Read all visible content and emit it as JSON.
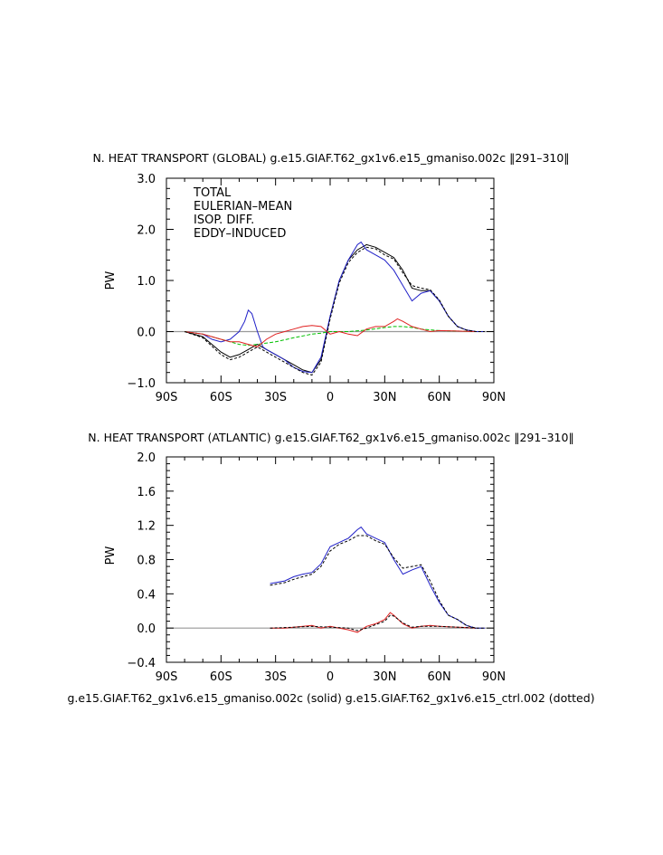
{
  "chart_data": [
    {
      "type": "line",
      "title": "N. HEAT TRANSPORT (GLOBAL) g.e15.GIAF.T62_gx1v6.e15_gmaniso.002c ‖291–310‖",
      "ylabel": "PW",
      "xlim": [
        -90,
        90
      ],
      "ylim": [
        -1.0,
        3.0
      ],
      "xticks": [
        -90,
        -60,
        -30,
        0,
        30,
        60,
        90
      ],
      "xtick_labels": [
        "90S",
        "60S",
        "30S",
        "0",
        "30N",
        "60N",
        "90N"
      ],
      "yticks": [
        -1.0,
        0.0,
        1.0,
        2.0,
        3.0
      ],
      "ytick_labels": [
        "−1.0",
        "0.0",
        "1.0",
        "2.0",
        "3.0"
      ],
      "legend_position": "top-left",
      "zero_line": true,
      "series": [
        {
          "name": "TOTAL",
          "color": "#000000",
          "style": "solid",
          "x": [
            -80,
            -70,
            -60,
            -55,
            -50,
            -45,
            -40,
            -35,
            -30,
            -25,
            -20,
            -15,
            -10,
            -5,
            0,
            5,
            10,
            15,
            20,
            25,
            30,
            35,
            40,
            45,
            50,
            55,
            60,
            65,
            70,
            75,
            80,
            85
          ],
          "y": [
            0.0,
            -0.1,
            -0.4,
            -0.5,
            -0.45,
            -0.35,
            -0.25,
            -0.35,
            -0.45,
            -0.55,
            -0.65,
            -0.75,
            -0.8,
            -0.55,
            0.3,
            1.0,
            1.4,
            1.6,
            1.7,
            1.65,
            1.55,
            1.45,
            1.2,
            0.85,
            0.8,
            0.8,
            0.6,
            0.3,
            0.1,
            0.03,
            0.0,
            0.0
          ]
        },
        {
          "name": "EULERIAN–MEAN",
          "color": "#2020c8",
          "style": "solid",
          "x": [
            -80,
            -70,
            -65,
            -60,
            -55,
            -50,
            -47,
            -45,
            -43,
            -40,
            -37,
            -35,
            -30,
            -25,
            -20,
            -15,
            -10,
            -5,
            0,
            5,
            10,
            15,
            17,
            20,
            25,
            30,
            35,
            40,
            45,
            50,
            55,
            60,
            65,
            70,
            75,
            80,
            85
          ],
          "y": [
            0.0,
            -0.05,
            -0.15,
            -0.2,
            -0.15,
            0.0,
            0.2,
            0.42,
            0.35,
            0.0,
            -0.3,
            -0.35,
            -0.45,
            -0.55,
            -0.7,
            -0.78,
            -0.8,
            -0.5,
            0.3,
            1.0,
            1.4,
            1.7,
            1.75,
            1.6,
            1.5,
            1.4,
            1.2,
            0.9,
            0.6,
            0.75,
            0.8,
            0.6,
            0.3,
            0.1,
            0.03,
            0.0,
            0.0
          ]
        },
        {
          "name": "ISOP. DIFF.",
          "color": "#00c000",
          "style": "dashed",
          "x": [
            -80,
            -70,
            -60,
            -50,
            -45,
            -40,
            -30,
            -20,
            -10,
            -5,
            0,
            5,
            10,
            20,
            30,
            35,
            40,
            45,
            50,
            60,
            70,
            80
          ],
          "y": [
            0.0,
            -0.05,
            -0.15,
            -0.25,
            -0.27,
            -0.25,
            -0.2,
            -0.12,
            -0.05,
            -0.03,
            0.0,
            0.0,
            0.0,
            0.03,
            0.08,
            0.1,
            0.1,
            0.08,
            0.05,
            0.02,
            0.01,
            0.0
          ]
        },
        {
          "name": "EDDY–INDUCED",
          "color": "#e02020",
          "style": "solid",
          "x": [
            -80,
            -70,
            -60,
            -55,
            -50,
            -45,
            -40,
            -35,
            -30,
            -25,
            -20,
            -15,
            -10,
            -5,
            0,
            5,
            10,
            15,
            20,
            25,
            30,
            35,
            37,
            40,
            45,
            50,
            55,
            60,
            70,
            80
          ],
          "y": [
            0.0,
            -0.05,
            -0.15,
            -0.2,
            -0.2,
            -0.25,
            -0.3,
            -0.15,
            -0.05,
            0.0,
            0.05,
            0.1,
            0.12,
            0.1,
            -0.05,
            0.0,
            -0.05,
            -0.08,
            0.05,
            0.1,
            0.1,
            0.2,
            0.25,
            0.2,
            0.1,
            0.05,
            0.0,
            0.02,
            0.01,
            0.0
          ]
        },
        {
          "name": "",
          "color": "#000000",
          "style": "dotted",
          "x": [
            -80,
            -70,
            -60,
            -55,
            -50,
            -45,
            -40,
            -35,
            -30,
            -25,
            -20,
            -15,
            -10,
            -5,
            0,
            5,
            10,
            15,
            20,
            25,
            30,
            35,
            40,
            45,
            50,
            55,
            60,
            65,
            70,
            75,
            80,
            85
          ],
          "y": [
            0.0,
            -0.12,
            -0.45,
            -0.55,
            -0.5,
            -0.4,
            -0.3,
            -0.4,
            -0.5,
            -0.6,
            -0.7,
            -0.8,
            -0.85,
            -0.6,
            0.25,
            0.95,
            1.35,
            1.55,
            1.65,
            1.62,
            1.5,
            1.42,
            1.15,
            0.9,
            0.85,
            0.82,
            0.62,
            0.3,
            0.1,
            0.03,
            0.0,
            0.0
          ]
        }
      ]
    },
    {
      "type": "line",
      "title": "N. HEAT TRANSPORT (ATLANTIC) g.e15.GIAF.T62_gx1v6.e15_gmaniso.002c ‖291–310‖",
      "ylabel": "PW",
      "xlim": [
        -90,
        90
      ],
      "ylim": [
        -0.4,
        2.0
      ],
      "xticks": [
        -90,
        -60,
        -30,
        0,
        30,
        60,
        90
      ],
      "xtick_labels": [
        "90S",
        "60S",
        "30S",
        "0",
        "30N",
        "60N",
        "90N"
      ],
      "yticks": [
        -0.4,
        0.0,
        0.4,
        0.8,
        1.2,
        1.6,
        2.0
      ],
      "ytick_labels": [
        "−0.4",
        "0.0",
        "0.4",
        "0.8",
        "1.2",
        "1.6",
        "2.0"
      ],
      "zero_line": true,
      "series": [
        {
          "name": "",
          "color": "#2020c8",
          "style": "solid",
          "x": [
            -33,
            -25,
            -20,
            -15,
            -10,
            -5,
            0,
            5,
            10,
            15,
            17,
            20,
            25,
            30,
            35,
            40,
            45,
            50,
            55,
            60,
            65,
            70,
            75,
            80,
            85
          ],
          "y": [
            0.52,
            0.55,
            0.6,
            0.63,
            0.65,
            0.75,
            0.95,
            1.0,
            1.05,
            1.15,
            1.18,
            1.1,
            1.05,
            1.0,
            0.8,
            0.63,
            0.68,
            0.72,
            0.5,
            0.3,
            0.15,
            0.1,
            0.03,
            0.0,
            0.0
          ]
        },
        {
          "name": "",
          "color": "#e02020",
          "style": "solid",
          "x": [
            -33,
            -25,
            -20,
            -15,
            -10,
            -5,
            0,
            5,
            10,
            15,
            20,
            25,
            30,
            33,
            35,
            40,
            45,
            50,
            55,
            60,
            70,
            80
          ],
          "y": [
            0.0,
            0.0,
            0.01,
            0.02,
            0.03,
            0.0,
            0.02,
            0.0,
            -0.02,
            -0.05,
            0.02,
            0.05,
            0.1,
            0.18,
            0.15,
            0.05,
            0.0,
            0.02,
            0.03,
            0.02,
            0.01,
            0.0
          ]
        },
        {
          "name": "",
          "color": "#000000",
          "style": "dotted",
          "x": [
            -33,
            -25,
            -20,
            -15,
            -10,
            -5,
            0,
            5,
            10,
            15,
            20,
            25,
            30,
            35,
            40,
            45,
            50,
            55,
            60,
            65,
            70,
            75,
            80,
            85
          ],
          "y": [
            0.5,
            0.53,
            0.57,
            0.6,
            0.63,
            0.72,
            0.9,
            0.98,
            1.02,
            1.08,
            1.08,
            1.02,
            0.98,
            0.82,
            0.7,
            0.72,
            0.74,
            0.55,
            0.32,
            0.15,
            0.1,
            0.03,
            0.0,
            0.0
          ]
        },
        {
          "name": "",
          "color": "#000000",
          "style": "dotted",
          "x": [
            -33,
            -20,
            -10,
            0,
            10,
            15,
            20,
            25,
            30,
            33,
            35,
            40,
            45,
            50,
            60,
            70,
            80
          ],
          "y": [
            0.0,
            0.01,
            0.02,
            0.01,
            0.0,
            -0.03,
            0.0,
            0.04,
            0.08,
            0.15,
            0.14,
            0.06,
            0.01,
            0.02,
            0.02,
            0.01,
            0.0
          ]
        }
      ],
      "footer": "g.e15.GIAF.T62_gx1v6.e15_gmaniso.002c (solid) g.e15.GIAF.T62_gx1v6.e15_ctrl.002 (dotted)"
    }
  ]
}
